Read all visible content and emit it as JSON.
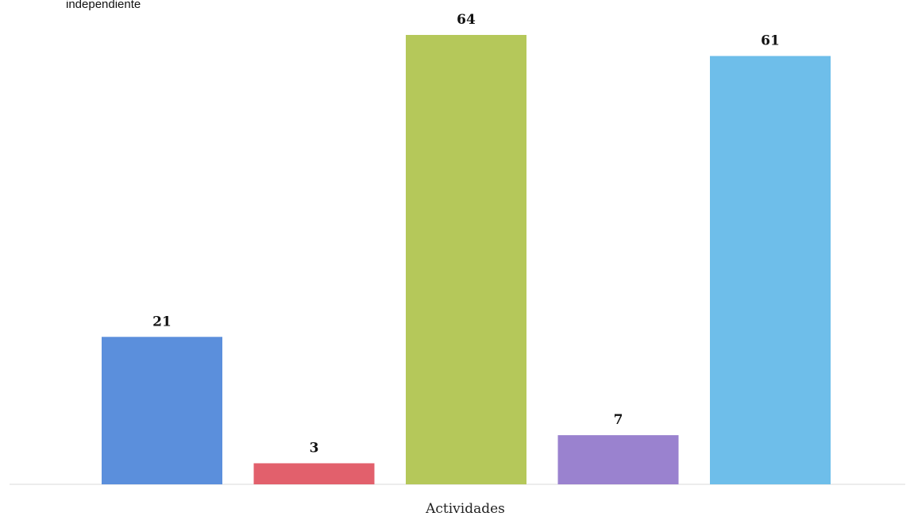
{
  "header": {
    "fragment": "independiente"
  },
  "chart_data": {
    "type": "bar",
    "categories": [
      "",
      "",
      "",
      "",
      ""
    ],
    "values": [
      21,
      3,
      64,
      7,
      61
    ],
    "colors": [
      "#5b8fdc",
      "#e2606c",
      "#b5c85a",
      "#9a82cf",
      "#6ebeea"
    ],
    "xlabel": "Actividades",
    "ylabel": "",
    "ylim": [
      0,
      64
    ],
    "grid": false,
    "data_labels": true
  }
}
